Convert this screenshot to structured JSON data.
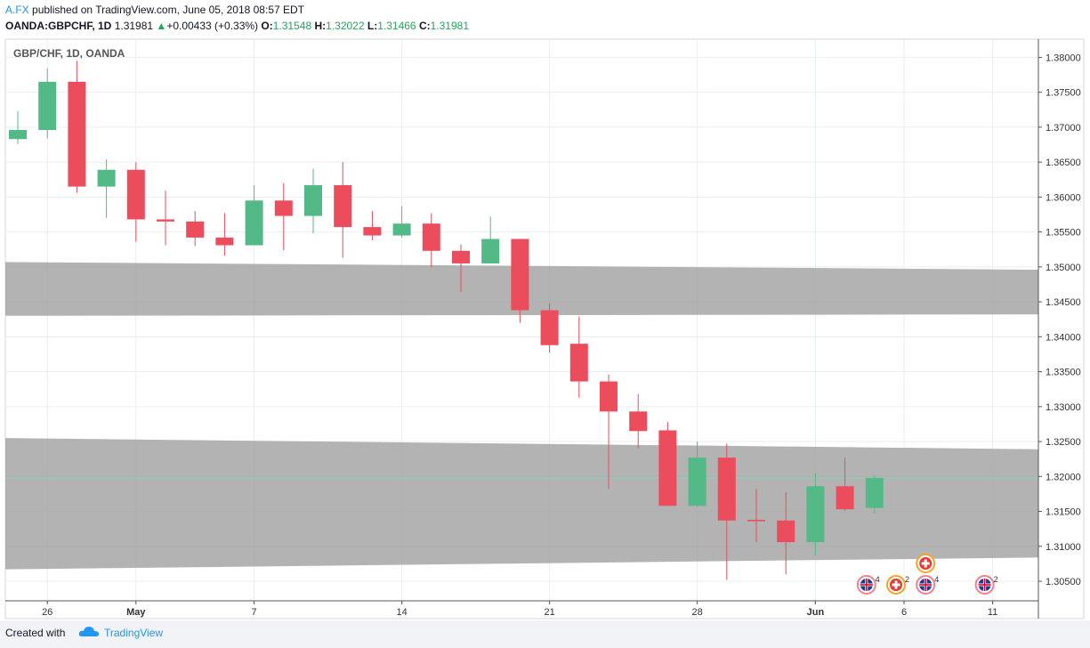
{
  "header": {
    "publisher": "A.FX",
    "published_text": "published on TradingView.com, June 05, 2018 08:57 EDT",
    "symbol": "OANDA:GBPCHF, 1D",
    "last": "1.31981",
    "change": "+0.00433 (+0.33%)",
    "o_label": "O:",
    "o_value": "1.31548",
    "h_label": "H:",
    "h_value": "1.32022",
    "l_label": "L:",
    "l_value": "1.31466",
    "c_label": "C:",
    "c_value": "1.31981"
  },
  "footer": {
    "created_with": "Created with",
    "brand": "TradingView"
  },
  "colors": {
    "up": "#53b987",
    "down": "#eb4d5c",
    "zone": "#a0a0a0",
    "grid": "#e9eef2",
    "axis": "#555555"
  },
  "chart_data": {
    "type": "candlestick",
    "title": "GBP/CHF, 1D, OANDA",
    "ylim": [
      1.3022,
      1.3826
    ],
    "y_ticks": [
      "1.30500",
      "1.31000",
      "1.31500",
      "1.32000",
      "1.32500",
      "1.33000",
      "1.33500",
      "1.34000",
      "1.34500",
      "1.35000",
      "1.35500",
      "1.36000",
      "1.36500",
      "1.37000",
      "1.37500",
      "1.38000"
    ],
    "x_ticks": [
      {
        "label": "26",
        "idx": 1
      },
      {
        "label": "May",
        "idx": 4
      },
      {
        "label": "7",
        "idx": 8
      },
      {
        "label": "14",
        "idx": 13
      },
      {
        "label": "21",
        "idx": 18
      },
      {
        "label": "28",
        "idx": 23
      },
      {
        "label": "Jun",
        "idx": 27
      },
      {
        "label": "6",
        "idx": 30
      },
      {
        "label": "11",
        "idx": 33
      }
    ],
    "candles": [
      {
        "o": 1.3683,
        "h": 1.3723,
        "l": 1.3676,
        "c": 1.3696
      },
      {
        "o": 1.3696,
        "h": 1.3784,
        "l": 1.3684,
        "c": 1.3765
      },
      {
        "o": 1.3765,
        "h": 1.3795,
        "l": 1.3606,
        "c": 1.3615
      },
      {
        "o": 1.3615,
        "h": 1.3654,
        "l": 1.357,
        "c": 1.3639
      },
      {
        "o": 1.3639,
        "h": 1.365,
        "l": 1.3536,
        "c": 1.3568
      },
      {
        "o": 1.3568,
        "h": 1.3609,
        "l": 1.3531,
        "c": 1.3565
      },
      {
        "o": 1.3565,
        "h": 1.358,
        "l": 1.353,
        "c": 1.3542
      },
      {
        "o": 1.3542,
        "h": 1.3577,
        "l": 1.3516,
        "c": 1.3531
      },
      {
        "o": 1.3531,
        "h": 1.3617,
        "l": 1.3531,
        "c": 1.3595
      },
      {
        "o": 1.3595,
        "h": 1.362,
        "l": 1.3524,
        "c": 1.3573
      },
      {
        "o": 1.3573,
        "h": 1.3641,
        "l": 1.3548,
        "c": 1.3617
      },
      {
        "o": 1.3617,
        "h": 1.365,
        "l": 1.3513,
        "c": 1.3557
      },
      {
        "o": 1.3557,
        "h": 1.358,
        "l": 1.3538,
        "c": 1.3545
      },
      {
        "o": 1.3545,
        "h": 1.3587,
        "l": 1.3542,
        "c": 1.3562
      },
      {
        "o": 1.3562,
        "h": 1.3577,
        "l": 1.3499,
        "c": 1.3523
      },
      {
        "o": 1.3523,
        "h": 1.3532,
        "l": 1.3464,
        "c": 1.3505
      },
      {
        "o": 1.3505,
        "h": 1.3572,
        "l": 1.3505,
        "c": 1.354
      },
      {
        "o": 1.354,
        "h": 1.354,
        "l": 1.342,
        "c": 1.3438
      },
      {
        "o": 1.3438,
        "h": 1.3448,
        "l": 1.3377,
        "c": 1.3388
      },
      {
        "o": 1.339,
        "h": 1.3429,
        "l": 1.3313,
        "c": 1.3336
      },
      {
        "o": 1.3336,
        "h": 1.3346,
        "l": 1.3182,
        "c": 1.3293
      },
      {
        "o": 1.3293,
        "h": 1.3318,
        "l": 1.324,
        "c": 1.3265
      },
      {
        "o": 1.3266,
        "h": 1.3278,
        "l": 1.3158,
        "c": 1.3158
      },
      {
        "o": 1.3158,
        "h": 1.325,
        "l": 1.3156,
        "c": 1.3227
      },
      {
        "o": 1.3227,
        "h": 1.3247,
        "l": 1.3052,
        "c": 1.3137
      },
      {
        "o": 1.3138,
        "h": 1.3182,
        "l": 1.3106,
        "c": 1.3136
      },
      {
        "o": 1.3137,
        "h": 1.3178,
        "l": 1.306,
        "c": 1.3106
      },
      {
        "o": 1.3106,
        "h": 1.3205,
        "l": 1.3087,
        "c": 1.3186
      },
      {
        "o": 1.3186,
        "h": 1.3227,
        "l": 1.3151,
        "c": 1.3153
      },
      {
        "o": 1.3155,
        "h": 1.3202,
        "l": 1.3147,
        "c": 1.3198
      }
    ],
    "zones": [
      {
        "left_top": 1.3507,
        "left_bottom": 1.343,
        "right_top": 1.3496,
        "right_bottom": 1.3432
      },
      {
        "left_top": 1.3255,
        "left_bottom": 1.3067,
        "right_top": 1.3239,
        "right_bottom": 1.3084
      }
    ],
    "last_price": 1.3198,
    "events": [
      {
        "idx": 29.0,
        "level": 0,
        "count": "4",
        "kind": "uk"
      },
      {
        "idx": 30.0,
        "level": 0,
        "count": "2",
        "kind": "ch"
      },
      {
        "idx": 31.0,
        "level": 0,
        "count": "4",
        "kind": "uk"
      },
      {
        "idx": 31.0,
        "level": 1,
        "count": "",
        "kind": "ch"
      },
      {
        "idx": 33.0,
        "level": 0,
        "count": "2",
        "kind": "uk"
      }
    ]
  }
}
